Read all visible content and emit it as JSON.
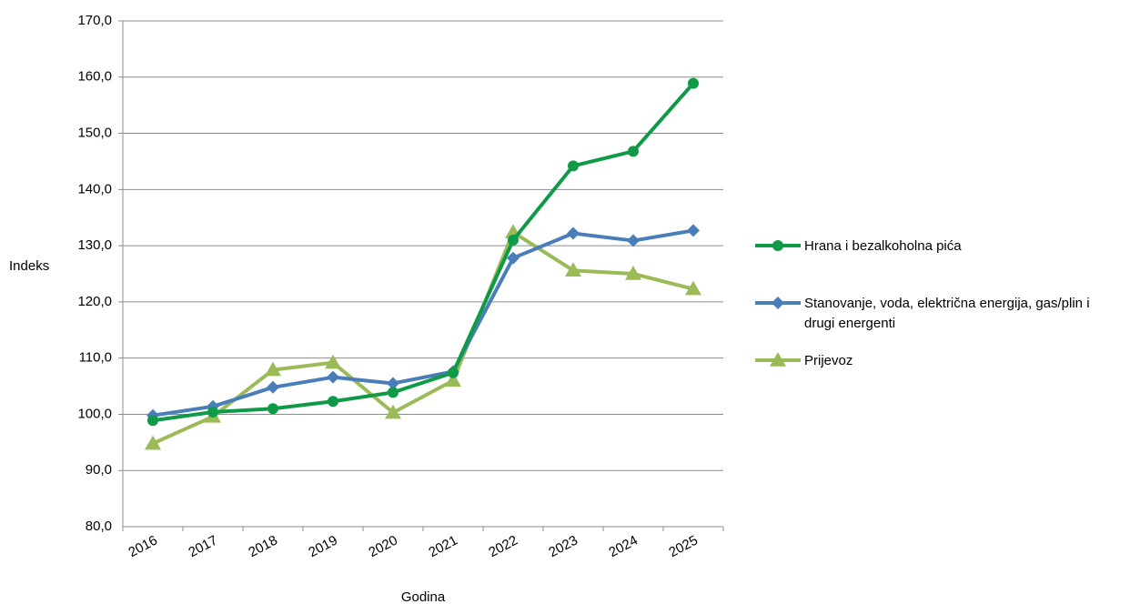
{
  "chart_data": {
    "type": "line",
    "title": "",
    "xlabel": "Godina",
    "ylabel": "Indeks",
    "ylim": [
      80,
      170
    ],
    "y_ticks": [
      "80,0",
      "90,0",
      "100,0",
      "110,0",
      "120,0",
      "130,0",
      "140,0",
      "150,0",
      "160,0",
      "170,0"
    ],
    "categories": [
      "2016",
      "2017",
      "2018",
      "2019",
      "2020",
      "2021",
      "2022",
      "2023",
      "2024",
      "2025"
    ],
    "grid": true,
    "legend_position": "right",
    "series": [
      {
        "name": "Hrana i bezalkoholna pića",
        "name_lines": [
          "Hrana i bezalkoholna pića"
        ],
        "color": "#0f9a48",
        "marker": "circle",
        "values": [
          98.9,
          100.4,
          101.0,
          102.3,
          103.9,
          107.4,
          131.0,
          144.2,
          146.8,
          158.9
        ]
      },
      {
        "name": "Stanovanje, voda, električna energija, gas/plin i drugi energenti",
        "name_lines": [
          "Stanovanje, voda, električna energija, gas/plin i",
          "drugi energenti"
        ],
        "color": "#4a7ebb",
        "marker": "diamond",
        "values": [
          99.8,
          101.4,
          104.8,
          106.6,
          105.5,
          107.6,
          127.8,
          132.2,
          130.9,
          132.7
        ]
      },
      {
        "name": "Prijevoz",
        "name_lines": [
          "Prijevoz"
        ],
        "color": "#9bbb59",
        "marker": "triangle",
        "values": [
          94.8,
          99.6,
          107.9,
          109.2,
          100.3,
          106.0,
          132.4,
          125.6,
          125.0,
          122.3
        ]
      }
    ]
  }
}
